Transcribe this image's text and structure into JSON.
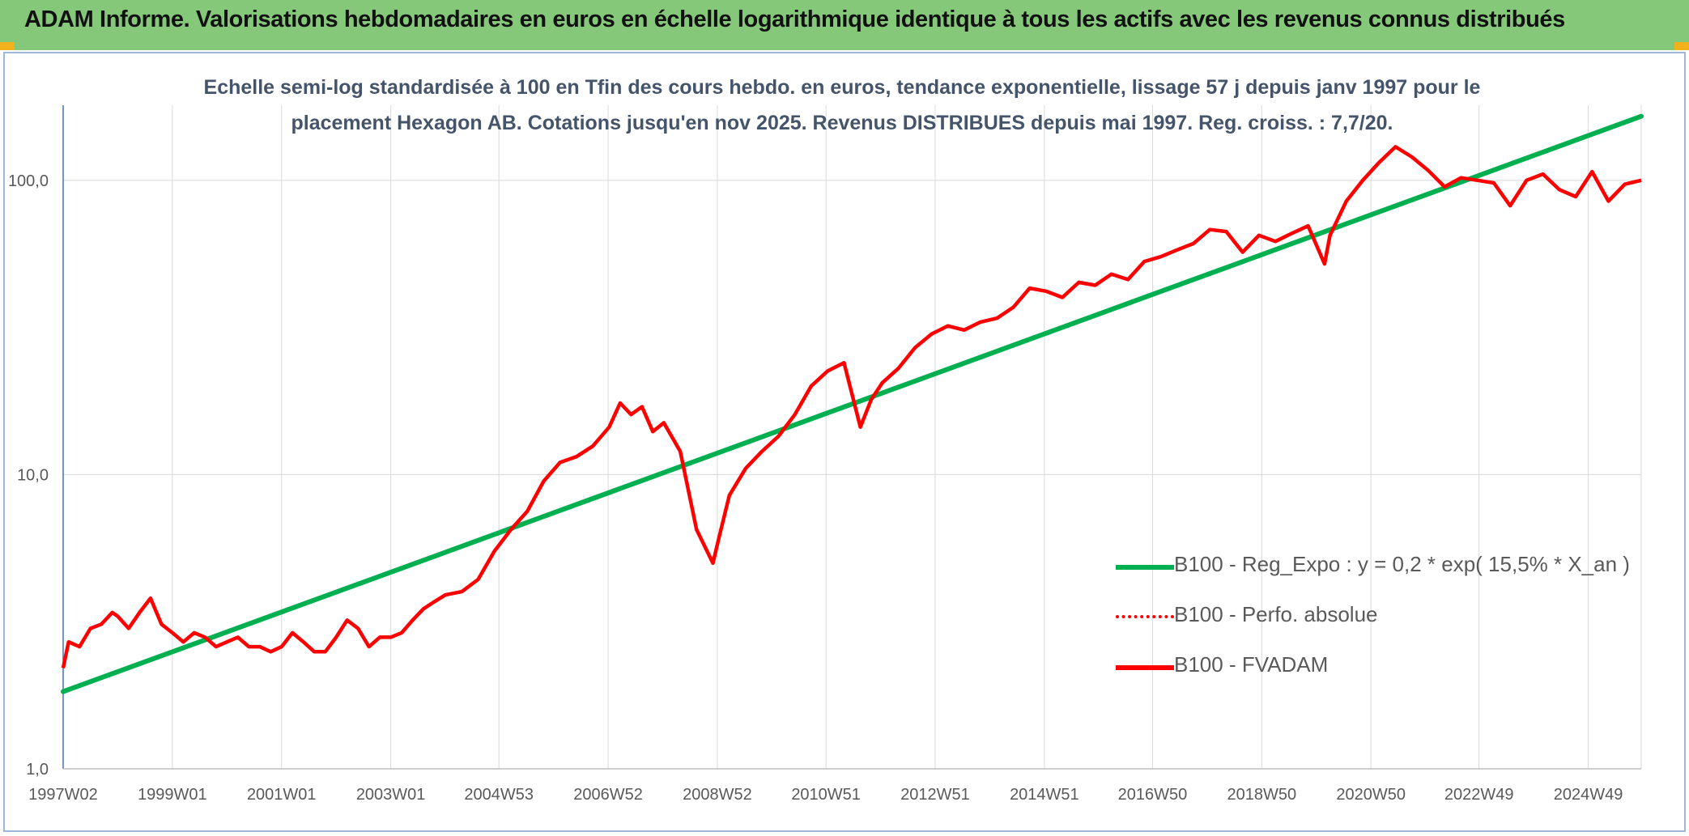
{
  "banner": {
    "title": "ADAM Informe. Valorisations hebdomadaires en euros en échelle logarithmique identique à tous les actifs avec les revenus connus distribués"
  },
  "colors": {
    "banner_bg": "#85c879",
    "regression": "#00b050",
    "fvadam": "#ff0000",
    "perfo": "#ff0000",
    "grid": "#d9d9d9",
    "axis_text": "#595959",
    "title_text": "#44546a"
  },
  "chart_data": {
    "type": "line",
    "title": "Echelle semi-log standardisée à 100 en Tfin des cours hebdo. en euros, tendance exponentielle, lissage 57 j depuis janv 1997 pour le placement Hexagon AB. Cotations jusqu'en nov 2025. Revenus DISTRIBUES depuis mai 1997. Reg. croiss. : 7,7/20.",
    "y_scale": "log",
    "ylim": [
      1,
      180
    ],
    "y_ticks": [
      {
        "value": 1,
        "label": "1,0"
      },
      {
        "value": 10,
        "label": "10,0"
      },
      {
        "value": 100,
        "label": "100,0"
      }
    ],
    "xlim": [
      1997.0,
      2025.9
    ],
    "x_ticks": [
      {
        "value": 1997.0,
        "label": "1997W02"
      },
      {
        "value": 1999.0,
        "label": "1999W01"
      },
      {
        "value": 2001.0,
        "label": "2001W01"
      },
      {
        "value": 2003.0,
        "label": "2003W01"
      },
      {
        "value": 2004.98,
        "label": "2004W53"
      },
      {
        "value": 2006.98,
        "label": "2006W52"
      },
      {
        "value": 2008.98,
        "label": "2008W52"
      },
      {
        "value": 2010.97,
        "label": "2010W51"
      },
      {
        "value": 2012.97,
        "label": "2012W51"
      },
      {
        "value": 2014.97,
        "label": "2014W51"
      },
      {
        "value": 2016.95,
        "label": "2016W50"
      },
      {
        "value": 2018.95,
        "label": "2018W50"
      },
      {
        "value": 2020.95,
        "label": "2020W50"
      },
      {
        "value": 2022.93,
        "label": "2022W49"
      },
      {
        "value": 2024.93,
        "label": "2024W49"
      }
    ],
    "grid": "vertical and horizontal",
    "legend_position": "lower-right",
    "series": [
      {
        "name": "B100 - Reg_Expo : y = 0,2 * exp( 15,5% *  X_an )",
        "style": "solid-green",
        "x": [
          1997.0,
          2025.9
        ],
        "y": [
          1.83,
          165
        ]
      },
      {
        "name": "B100 - Perfo. absolue",
        "style": "dotted-red",
        "x": [],
        "y": []
      },
      {
        "name": "B100 - FVADAM",
        "style": "solid-red",
        "x": [
          1997.0,
          1997.1,
          1997.3,
          1997.5,
          1997.7,
          1997.9,
          1998.0,
          1998.2,
          1998.4,
          1998.6,
          1998.8,
          1999.0,
          1999.2,
          1999.4,
          1999.6,
          1999.8,
          2000.0,
          2000.2,
          2000.4,
          2000.6,
          2000.8,
          2001.0,
          2001.2,
          2001.4,
          2001.6,
          2001.8,
          2002.0,
          2002.2,
          2002.4,
          2002.6,
          2002.8,
          2003.0,
          2003.2,
          2003.4,
          2003.6,
          2003.8,
          2004.0,
          2004.3,
          2004.6,
          2004.9,
          2005.2,
          2005.5,
          2005.8,
          2006.1,
          2006.4,
          2006.7,
          2007.0,
          2007.2,
          2007.4,
          2007.6,
          2007.8,
          2008.0,
          2008.3,
          2008.6,
          2008.9,
          2009.0,
          2009.2,
          2009.5,
          2009.8,
          2010.1,
          2010.4,
          2010.7,
          2011.0,
          2011.3,
          2011.6,
          2011.8,
          2012.0,
          2012.3,
          2012.6,
          2012.9,
          2013.2,
          2013.5,
          2013.8,
          2014.1,
          2014.4,
          2014.7,
          2015.0,
          2015.3,
          2015.6,
          2015.9,
          2016.2,
          2016.5,
          2016.8,
          2017.1,
          2017.4,
          2017.7,
          2018.0,
          2018.3,
          2018.6,
          2018.9,
          2019.2,
          2019.5,
          2019.8,
          2020.1,
          2020.2,
          2020.5,
          2020.8,
          2021.1,
          2021.4,
          2021.7,
          2022.0,
          2022.3,
          2022.6,
          2022.9,
          2023.2,
          2023.5,
          2023.8,
          2024.1,
          2024.4,
          2024.7,
          2025.0,
          2025.3,
          2025.6,
          2025.9
        ],
        "y": [
          2.2,
          2.7,
          2.6,
          3.0,
          3.1,
          3.4,
          3.3,
          3.0,
          3.4,
          3.8,
          3.1,
          2.9,
          2.7,
          2.9,
          2.8,
          2.6,
          2.7,
          2.8,
          2.6,
          2.6,
          2.5,
          2.6,
          2.9,
          2.7,
          2.5,
          2.5,
          2.8,
          3.2,
          3.0,
          2.6,
          2.8,
          2.8,
          2.9,
          3.2,
          3.5,
          3.7,
          3.9,
          4.0,
          4.4,
          5.5,
          6.5,
          7.5,
          9.5,
          11.0,
          11.5,
          12.5,
          14.5,
          17.5,
          16.0,
          17.0,
          14.0,
          15.0,
          12.0,
          6.5,
          5.0,
          6.0,
          8.5,
          10.5,
          12.0,
          13.5,
          16.0,
          20.0,
          22.5,
          24.0,
          14.5,
          18.0,
          20.5,
          23.0,
          27.0,
          30.0,
          32.0,
          31.0,
          33.0,
          34.0,
          37.0,
          43.0,
          42.0,
          40.0,
          45.0,
          44.0,
          48.0,
          46.0,
          53.0,
          55.0,
          58.0,
          61.0,
          68.0,
          67.0,
          57.0,
          65.0,
          62.0,
          66.0,
          70.0,
          52.0,
          65.0,
          85.0,
          100.0,
          115.0,
          130.0,
          120.0,
          108.0,
          95.0,
          102.0,
          100.0,
          98.0,
          82.0,
          100.0,
          105.0,
          93.0,
          88.0,
          107.0,
          85.0,
          97.0,
          100.0
        ]
      }
    ]
  }
}
